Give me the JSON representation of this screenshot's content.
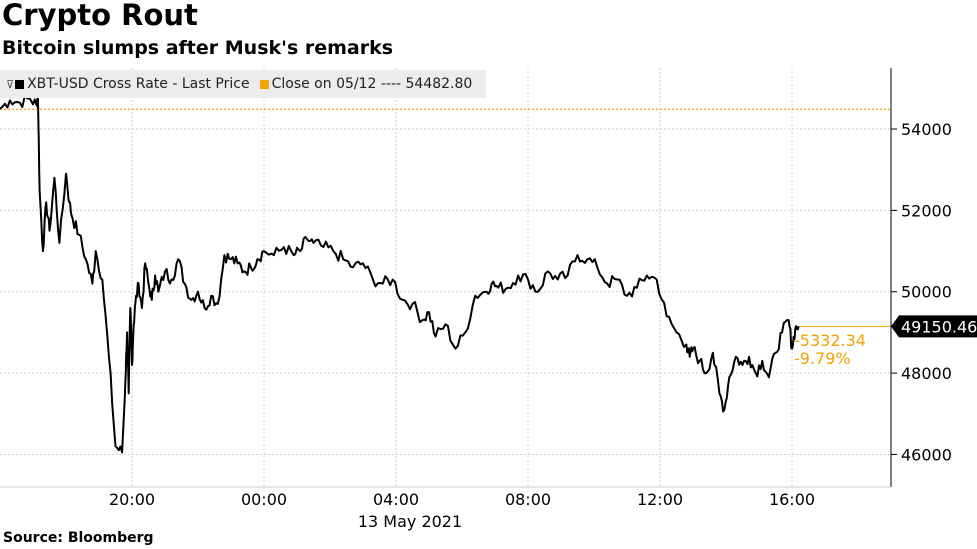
{
  "header": {
    "title": "Crypto Rout",
    "subtitle": "Bitcoin slumps after Musk's remarks"
  },
  "footer": {
    "source": "Source: Bloomberg"
  },
  "legend": {
    "series_label": "XBT-USD Cross Rate - Last Price",
    "reference_label": "Close on 05/12 ---- 54482.80"
  },
  "colors": {
    "line": "#000000",
    "reference": "#f0a30a",
    "grid": "#cfcfcf",
    "badge_bg": "#000000",
    "badge_text": "#ffffff"
  },
  "annotations": {
    "last_price": "49150.46",
    "change": "-5332.34",
    "change_pct": "-9.79%"
  },
  "chart_data": {
    "type": "line",
    "title": "Crypto Rout",
    "subtitle": "Bitcoin slumps after Musk's remarks",
    "x_axis": {
      "ticks": [
        {
          "label": "20:00",
          "hour": 20
        },
        {
          "label": "00:00",
          "hour": 24
        },
        {
          "label": "04:00",
          "hour": 28
        },
        {
          "label": "08:00",
          "hour": 32
        },
        {
          "label": "12:00",
          "hour": 36
        },
        {
          "label": "16:00",
          "hour": 40
        }
      ],
      "date_label": "13 May 2021",
      "range": [
        16,
        43
      ]
    },
    "y_axis": {
      "ticks": [
        46000,
        48000,
        50000,
        52000,
        54000
      ],
      "tick_labels": [
        "46000",
        "48000",
        "50000",
        "52000",
        "54000"
      ],
      "range": [
        45200,
        55500
      ],
      "position": "right"
    },
    "grid": true,
    "reference_line": {
      "label": "Close on 05/12",
      "value": 54482.8
    },
    "series": [
      {
        "name": "XBT-USD Cross Rate - Last Price",
        "x": [
          16.0,
          16.3,
          16.6,
          16.9,
          17.1,
          17.15,
          17.2,
          17.3,
          17.4,
          17.5,
          17.65,
          17.8,
          18.0,
          18.1,
          18.2,
          18.4,
          18.6,
          18.8,
          18.9,
          19.1,
          19.3,
          19.5,
          19.7,
          19.8,
          19.85,
          19.9,
          19.95,
          20.0,
          20.05,
          20.1,
          20.2,
          20.3,
          20.4,
          20.5,
          20.6,
          20.7,
          20.8,
          21.0,
          21.2,
          21.4,
          21.6,
          21.8,
          22.0,
          22.2,
          22.4,
          22.6,
          22.8,
          23.0,
          23.2,
          23.4,
          23.6,
          23.8,
          24.0,
          24.3,
          24.6,
          24.9,
          25.1,
          25.3,
          25.5,
          25.8,
          26.1,
          26.4,
          26.7,
          27.0,
          27.3,
          27.6,
          27.9,
          28.2,
          28.5,
          28.8,
          29.0,
          29.2,
          29.5,
          29.8,
          30.1,
          30.4,
          30.7,
          30.9,
          31.1,
          31.4,
          31.7,
          32.0,
          32.3,
          32.6,
          32.9,
          33.2,
          33.5,
          33.8,
          34.1,
          34.4,
          34.7,
          35.0,
          35.3,
          35.6,
          35.9,
          36.2,
          36.5,
          36.8,
          36.9,
          37.0,
          37.2,
          37.4,
          37.6,
          37.8,
          37.95,
          38.1,
          38.3,
          38.5,
          38.7,
          38.9,
          39.1,
          39.3,
          39.5,
          39.7,
          39.9,
          40.0,
          40.1,
          40.2
        ],
        "values": [
          54500,
          54700,
          54650,
          54750,
          54600,
          54800,
          52500,
          51000,
          52200,
          51500,
          52800,
          51200,
          52900,
          52200,
          51800,
          51400,
          50800,
          50200,
          51000,
          50300,
          48400,
          46200,
          46050,
          47800,
          49000,
          47500,
          49600,
          48200,
          49200,
          49700,
          50200,
          49600,
          50700,
          50200,
          49800,
          50400,
          50000,
          50500,
          50300,
          50800,
          50200,
          49800,
          50000,
          49600,
          49900,
          49700,
          50900,
          50800,
          50700,
          50500,
          50600,
          50800,
          51000,
          50900,
          51100,
          50900,
          51000,
          51300,
          51200,
          51100,
          51000,
          50800,
          50600,
          50700,
          50300,
          50200,
          50300,
          49800,
          49700,
          49300,
          49500,
          48900,
          49200,
          48600,
          49000,
          49900,
          50000,
          50200,
          50100,
          50100,
          50400,
          50300,
          50000,
          50500,
          50300,
          50400,
          50900,
          50800,
          50600,
          50200,
          50300,
          49900,
          50100,
          50400,
          50300,
          49400,
          49000,
          48700,
          48400,
          48600,
          48300,
          48000,
          48500,
          47500,
          47100,
          47900,
          48400,
          48200,
          48400,
          48000,
          48300,
          47900,
          48500,
          49000,
          49300,
          48600,
          49100,
          49150
        ]
      }
    ]
  }
}
